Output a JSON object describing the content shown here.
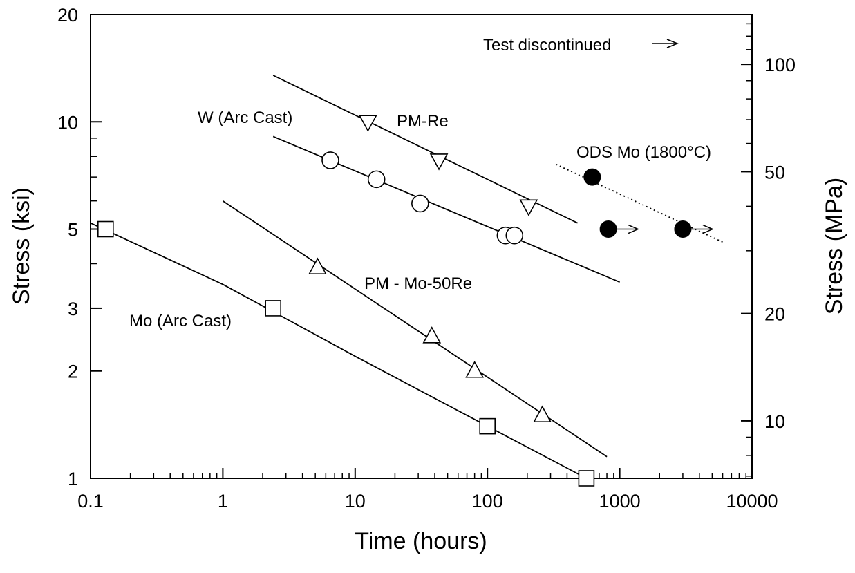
{
  "chart_data": {
    "type": "scatter",
    "xlabel": "Time (hours)",
    "ylabel": "Stress (ksi)",
    "y2label": "Stress (MPa)",
    "xscale": "log",
    "yscale": "log",
    "xlim": [
      0.1,
      10000
    ],
    "ylim": [
      1,
      20
    ],
    "y2lim": [
      6.9,
      138
    ],
    "grid": false,
    "x_ticks": [
      "0.1",
      "1",
      "10",
      "100",
      "1000",
      "10000"
    ],
    "y_ticks": [
      "1",
      "2",
      "3",
      "5",
      "10",
      "20"
    ],
    "y2_ticks": [
      "10",
      "20",
      "50",
      "100"
    ],
    "series": [
      {
        "label": "Mo (Arc Cast)",
        "marker": "square",
        "points": [
          [
            0.13,
            5.0
          ],
          [
            2.4,
            3.0
          ],
          [
            100,
            1.4
          ],
          [
            560,
            1.0
          ]
        ],
        "fit": [
          [
            0.1,
            5.2
          ],
          [
            1,
            3.5
          ],
          [
            10,
            2.2
          ],
          [
            100,
            1.4
          ],
          [
            560,
            1.0
          ]
        ]
      },
      {
        "label": "PM - Mo-50Re",
        "marker": "triangle-up",
        "points": [
          [
            5.2,
            3.9
          ],
          [
            38,
            2.5
          ],
          [
            80,
            2.0
          ],
          [
            260,
            1.5
          ]
        ],
        "fit": [
          [
            1,
            6.0
          ],
          [
            800,
            1.15
          ]
        ]
      },
      {
        "label": "W (Arc Cast)",
        "marker": "circle-open",
        "points": [
          [
            6.5,
            7.8
          ],
          [
            14.5,
            6.9
          ],
          [
            31,
            5.9
          ],
          [
            137,
            4.8
          ],
          [
            160,
            4.8
          ]
        ],
        "fit": [
          [
            2.4,
            9.1
          ],
          [
            1000,
            3.55
          ]
        ]
      },
      {
        "label": "PM-Re",
        "marker": "triangle-down",
        "points": [
          [
            12.5,
            10.0
          ],
          [
            43,
            7.8
          ],
          [
            205,
            5.8
          ]
        ],
        "fit": [
          [
            2.4,
            13.5
          ],
          [
            480,
            5.2
          ]
        ]
      },
      {
        "label": "ODS Mo (1800°C)",
        "marker": "circle-filled",
        "line_style": "dotted",
        "points": [
          [
            620,
            7.0
          ],
          [
            820,
            5.0
          ],
          [
            3000,
            5.0
          ]
        ],
        "discontinued": [
          false,
          true,
          true
        ],
        "fit": [
          [
            330,
            7.6
          ],
          [
            6000,
            4.6
          ]
        ]
      }
    ],
    "annotations": {
      "test_discontinued": "Test discontinued",
      "mo_arc_cast": "Mo (Arc Cast)",
      "pm_mo_50re": "PM - Mo-50Re",
      "w_arc_cast": "W (Arc Cast)",
      "pm_re": "PM-Re",
      "ods_mo": "ODS Mo (1800°C)"
    }
  }
}
